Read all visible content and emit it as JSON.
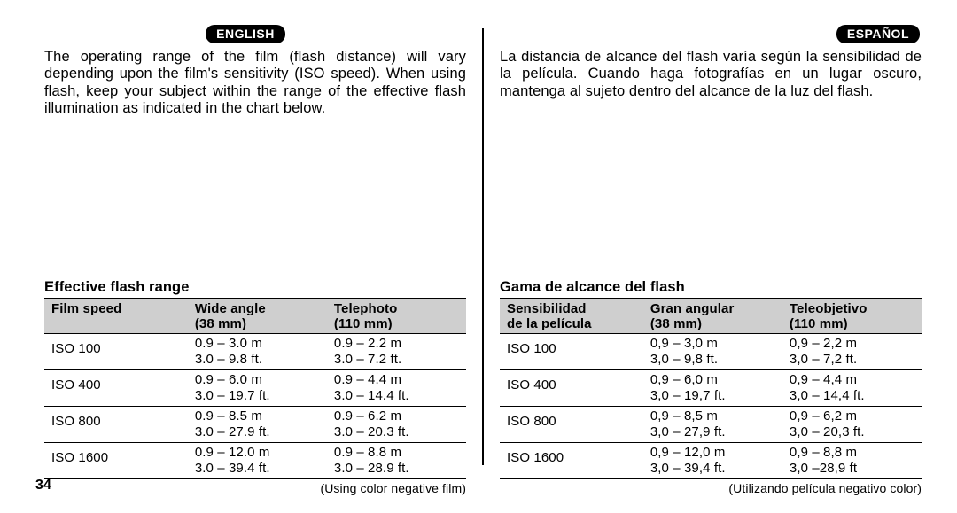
{
  "page_number": "34",
  "english": {
    "lang_label": "ENGLISH",
    "body": "The operating range of the film (flash distance) will vary depending upon the film's sensitivity (ISO speed). When using flash, keep your subject within the range of the effective flash illumination as indicated in the chart below.",
    "table_title": "Effective flash range",
    "headers": {
      "c1": "Film speed",
      "c2a": "Wide angle",
      "c2b": "(38 mm)",
      "c3a": "Telephoto",
      "c3b": "(110 mm)"
    },
    "rows": [
      {
        "iso": "ISO 100",
        "w_m": "0.9 – 3.0 m",
        "w_ft": "3.0 – 9.8 ft.",
        "t_m": "0.9 – 2.2 m",
        "t_ft": "3.0 – 7.2 ft."
      },
      {
        "iso": "ISO 400",
        "w_m": "0.9 – 6.0 m",
        "w_ft": "3.0 – 19.7 ft.",
        "t_m": "0.9 – 4.4 m",
        "t_ft": "3.0 – 14.4 ft."
      },
      {
        "iso": "ISO 800",
        "w_m": "0.9 – 8.5 m",
        "w_ft": "3.0 – 27.9 ft.",
        "t_m": "0.9 – 6.2 m",
        "t_ft": "3.0 – 20.3 ft."
      },
      {
        "iso": "ISO 1600",
        "w_m": "0.9 – 12.0 m",
        "w_ft": "3.0 – 39.4 ft.",
        "t_m": "0.9 – 8.8 m",
        "t_ft": "3.0 – 28.9 ft."
      }
    ],
    "note": "(Using color negative film)"
  },
  "spanish": {
    "lang_label": "ESPAÑOL",
    "body": "La distancia de alcance del flash varía según la sensibilidad de la película. Cuando haga fotografías en un lugar oscuro, mantenga al sujeto dentro del alcance de la luz del flash.",
    "table_title": "Gama de alcance del flash",
    "headers": {
      "c1a": "Sensibilidad",
      "c1b": "de la película",
      "c2a": "Gran angular",
      "c2b": "(38 mm)",
      "c3a": "Teleobjetivo",
      "c3b": "(110 mm)"
    },
    "rows": [
      {
        "iso": "ISO 100",
        "w_m": "0,9 – 3,0 m",
        "w_ft": "3,0 – 9,8 ft.",
        "t_m": "0,9 – 2,2 m",
        "t_ft": "3,0 – 7,2 ft."
      },
      {
        "iso": "ISO 400",
        "w_m": "0,9 – 6,0 m",
        "w_ft": "3,0 – 19,7 ft.",
        "t_m": "0,9 – 4,4 m",
        "t_ft": "3,0 – 14,4 ft."
      },
      {
        "iso": "ISO 800",
        "w_m": "0,9 – 8,5 m",
        "w_ft": "3,0 – 27,9 ft.",
        "t_m": "0,9 – 6,2 m",
        "t_ft": "3,0 – 20,3 ft."
      },
      {
        "iso": "ISO 1600",
        "w_m": "0,9 – 12,0 m",
        "w_ft": "3,0 – 39,4 ft.",
        "t_m": "0,9 – 8,8 m",
        "t_ft": "3,0 –28,9 ft"
      }
    ],
    "note": "(Utilizando película negativo color)"
  }
}
